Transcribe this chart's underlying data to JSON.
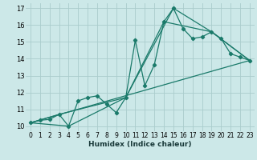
{
  "background_color": "#cce8e8",
  "grid_color": "#aacccc",
  "line_color": "#1a7a6a",
  "xlabel": "Humidex (Indice chaleur)",
  "xlim": [
    -0.5,
    23.5
  ],
  "ylim": [
    9.7,
    17.3
  ],
  "yticks": [
    10,
    11,
    12,
    13,
    14,
    15,
    16,
    17
  ],
  "xticks": [
    0,
    1,
    2,
    3,
    4,
    5,
    6,
    7,
    8,
    9,
    10,
    11,
    12,
    13,
    14,
    15,
    16,
    17,
    18,
    19,
    20,
    21,
    22,
    23
  ],
  "line1": {
    "x": [
      0,
      1,
      2,
      3,
      4,
      5,
      6,
      7,
      8,
      9,
      10,
      11,
      12,
      13,
      14,
      15,
      16,
      17,
      18,
      19,
      20,
      21,
      22,
      23
    ],
    "y": [
      10.2,
      10.35,
      10.4,
      10.7,
      10.0,
      11.5,
      11.7,
      11.8,
      11.3,
      10.8,
      11.7,
      15.1,
      12.4,
      13.65,
      16.2,
      17.0,
      15.8,
      15.2,
      15.3,
      15.6,
      15.2,
      14.3,
      14.1,
      13.9
    ]
  },
  "line2": {
    "x": [
      0,
      4,
      10,
      15,
      19,
      23
    ],
    "y": [
      10.2,
      10.0,
      11.7,
      17.0,
      15.6,
      13.9
    ]
  },
  "line3": {
    "x": [
      0,
      23
    ],
    "y": [
      10.2,
      13.9
    ]
  },
  "line4": {
    "x": [
      0,
      3,
      10,
      14,
      19,
      23
    ],
    "y": [
      10.2,
      10.7,
      11.7,
      16.2,
      15.6,
      13.9
    ]
  }
}
